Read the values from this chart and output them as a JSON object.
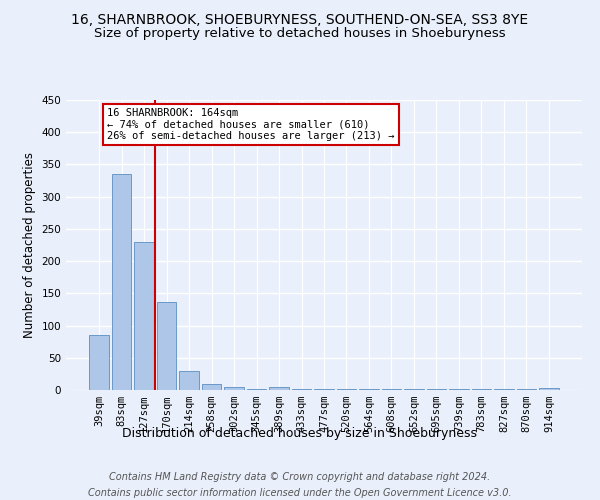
{
  "title": "16, SHARNBROOK, SHOEBURYNESS, SOUTHEND-ON-SEA, SS3 8YE",
  "subtitle": "Size of property relative to detached houses in Shoeburyness",
  "xlabel": "Distribution of detached houses by size in Shoeburyness",
  "ylabel": "Number of detached properties",
  "footnote1": "Contains HM Land Registry data © Crown copyright and database right 2024.",
  "footnote2": "Contains public sector information licensed under the Open Government Licence v3.0.",
  "categories": [
    "39sqm",
    "83sqm",
    "127sqm",
    "170sqm",
    "214sqm",
    "258sqm",
    "302sqm",
    "345sqm",
    "389sqm",
    "433sqm",
    "477sqm",
    "520sqm",
    "564sqm",
    "608sqm",
    "652sqm",
    "695sqm",
    "739sqm",
    "783sqm",
    "827sqm",
    "870sqm",
    "914sqm"
  ],
  "values": [
    85,
    335,
    230,
    136,
    30,
    10,
    5,
    2,
    4,
    1,
    2,
    1,
    1,
    1,
    1,
    1,
    2,
    1,
    1,
    1,
    3
  ],
  "bar_color": "#aec6e8",
  "bar_edge_color": "#5a8fc2",
  "background_color": "#eaf0fb",
  "grid_color": "#ffffff",
  "vline_color": "#cc0000",
  "annotation_box_color": "#cc0000",
  "ylim": [
    0,
    450
  ],
  "title_fontsize": 10,
  "subtitle_fontsize": 9.5,
  "tick_fontsize": 7.5,
  "ylabel_fontsize": 8.5,
  "xlabel_fontsize": 9,
  "footnote_fontsize": 7
}
